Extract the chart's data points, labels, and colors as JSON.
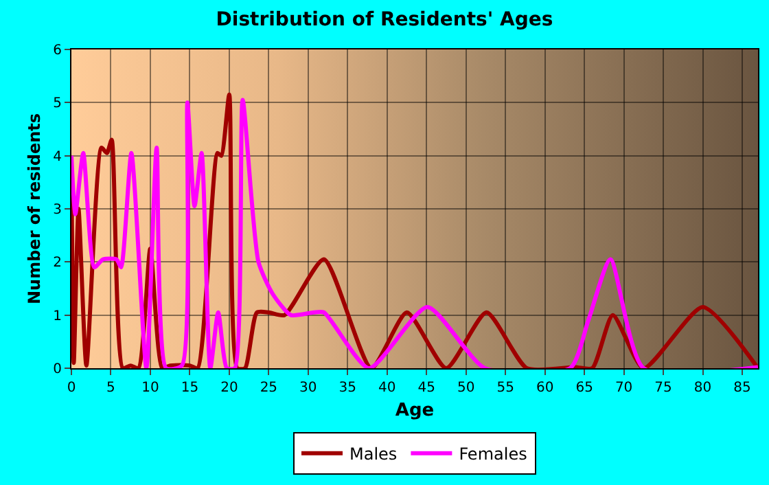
{
  "chart_data": {
    "type": "line",
    "title": "Distribution of Residents' Ages",
    "xlabel": "Age",
    "ylabel": "Number of residents",
    "xlim": [
      0,
      87
    ],
    "ylim": [
      0,
      6
    ],
    "xticks": [
      0,
      5,
      10,
      15,
      20,
      25,
      30,
      35,
      40,
      45,
      50,
      55,
      60,
      65,
      70,
      75,
      80,
      85
    ],
    "yticks": [
      0,
      1,
      2,
      3,
      4,
      5,
      6
    ],
    "grid": true,
    "legend": "bottom",
    "marker": "none",
    "line_style": "solid",
    "series": [
      {
        "name": "Males",
        "color": "#a00000",
        "x": [
          0,
          0.3,
          0.9,
          1.9,
          3.8,
          4.5,
          5.1,
          6.5,
          7.5,
          8.5,
          10,
          11.5,
          12.5,
          15,
          16,
          18.5,
          19,
          20,
          21,
          22,
          23.5,
          25,
          27,
          32,
          38,
          42.5,
          47.5,
          52.6,
          57.7,
          63.8,
          66,
          68.6,
          72.5,
          80,
          87
        ],
        "values": [
          4,
          0.1,
          3,
          0.05,
          4.15,
          4.05,
          4.3,
          0,
          0.05,
          0,
          2.25,
          0,
          0.05,
          0.05,
          0,
          4.05,
          4,
          5.15,
          0,
          0,
          1.05,
          1.05,
          1,
          2.05,
          0,
          1.05,
          0,
          1.05,
          0,
          0.02,
          0,
          1,
          0,
          1.15,
          0
        ]
      },
      {
        "name": "Females",
        "color": "#ff00ff",
        "x": [
          0,
          0.5,
          1.5,
          2.9,
          4,
          5.7,
          6.3,
          7.6,
          9.5,
          10.8,
          12,
          14,
          14.7,
          15.6,
          16.5,
          17.6,
          18.6,
          19.7,
          20.7,
          21.7,
          23.7,
          25.5,
          27.8,
          30.7,
          32,
          37.7,
          45.1,
          52.4,
          63.2,
          65.5,
          68.3,
          72.5,
          87
        ],
        "values": [
          4,
          2.9,
          4.05,
          1.9,
          2.05,
          2.05,
          1.9,
          4.05,
          0,
          4.15,
          0,
          0.05,
          5,
          3.05,
          4.05,
          0,
          1.05,
          0,
          0,
          5.05,
          2,
          1.4,
          1,
          1.05,
          1.05,
          0,
          1.15,
          0,
          0,
          0.9,
          2.05,
          0,
          0.02
        ]
      }
    ]
  }
}
